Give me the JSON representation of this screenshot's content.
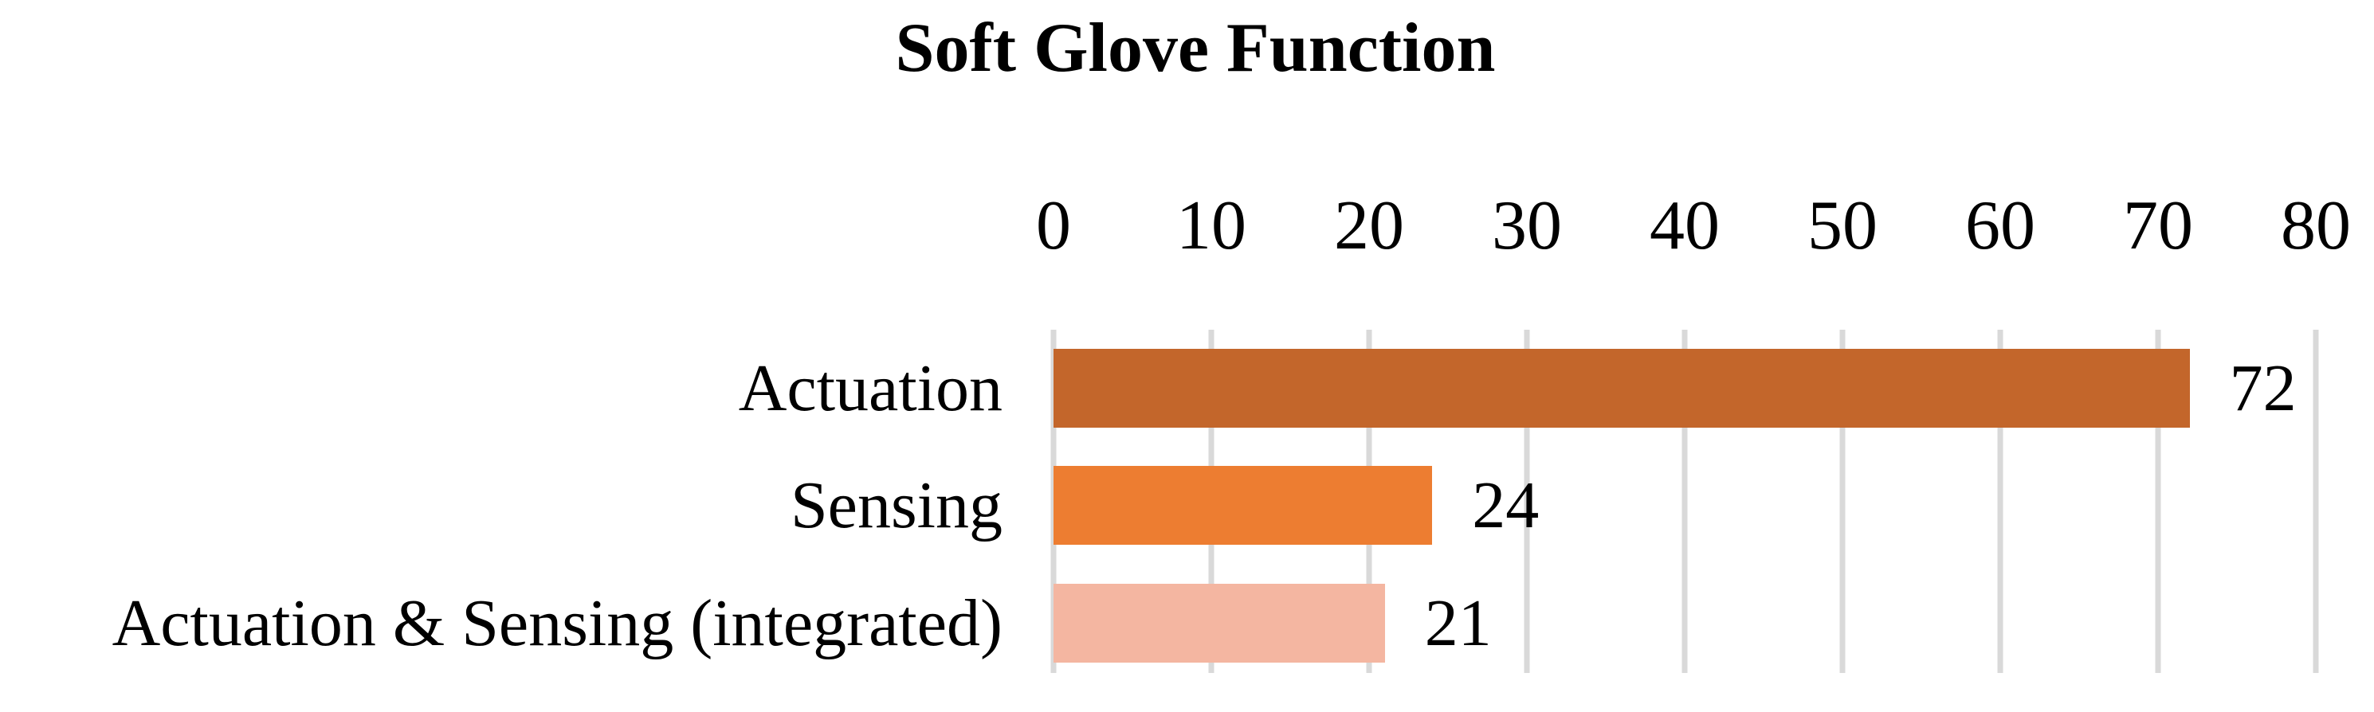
{
  "page": {
    "background": "#FFFFFF",
    "text_color": "#000000"
  },
  "chart_data": {
    "type": "bar",
    "orientation": "horizontal",
    "title": "Soft Glove Function",
    "categories": [
      "Actuation",
      "Sensing",
      "Actuation & Sensing (integrated)"
    ],
    "values": [
      72,
      24,
      21
    ],
    "data_labels": [
      "72",
      "24",
      "21"
    ],
    "bar_colors": [
      "#C3662B",
      "#ED7D31",
      "#F4B6A1"
    ],
    "x_ticks": [
      "0",
      "10",
      "20",
      "30",
      "40",
      "50",
      "60",
      "70",
      "80"
    ],
    "xlim": [
      0,
      80
    ],
    "xlabel": "",
    "ylabel": "",
    "grid": true,
    "gridline_color": "#D9D9D9",
    "legend": false,
    "data_labels_position": "outside-end"
  }
}
